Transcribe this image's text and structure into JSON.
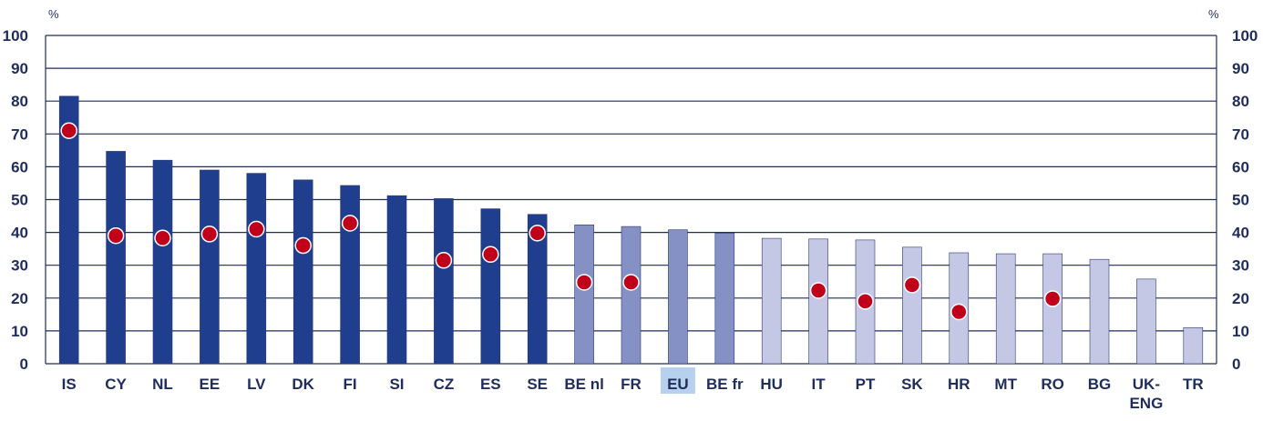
{
  "chart_data": {
    "type": "bar",
    "unit_left": "%",
    "unit_right": "%",
    "ylim": [
      0,
      100
    ],
    "yticks": [
      "0",
      "10",
      "20",
      "30",
      "40",
      "50",
      "60",
      "70",
      "80",
      "90",
      "100"
    ],
    "grid": true,
    "highlight_category": "EU",
    "categories": [
      [
        "IS"
      ],
      [
        "CY"
      ],
      [
        "NL"
      ],
      [
        "EE"
      ],
      [
        "LV"
      ],
      [
        "DK"
      ],
      [
        "FI"
      ],
      [
        "SI"
      ],
      [
        "CZ"
      ],
      [
        "ES"
      ],
      [
        "SE"
      ],
      [
        "BE nl"
      ],
      [
        "FR"
      ],
      [
        "EU"
      ],
      [
        "BE fr"
      ],
      [
        "HU"
      ],
      [
        "IT"
      ],
      [
        "PT"
      ],
      [
        "SK"
      ],
      [
        "HR"
      ],
      [
        "MT"
      ],
      [
        "RO"
      ],
      [
        "BG"
      ],
      [
        "UK-",
        "ENG"
      ],
      [
        "TR"
      ]
    ],
    "values": [
      81.5,
      64.7,
      62.0,
      59.0,
      58.0,
      56.0,
      54.3,
      51.2,
      50.3,
      47.2,
      45.5,
      42.3,
      41.8,
      40.8,
      39.8,
      38.2,
      38.0,
      37.7,
      35.5,
      33.8,
      33.5,
      33.5,
      31.8,
      25.8,
      11.0
    ],
    "groups": [
      "dark",
      "dark",
      "dark",
      "dark",
      "dark",
      "dark",
      "dark",
      "dark",
      "dark",
      "dark",
      "dark",
      "mid",
      "mid",
      "mid",
      "mid",
      "light",
      "light",
      "light",
      "light",
      "light",
      "light",
      "light",
      "light",
      "light",
      "light"
    ],
    "markers": [
      71.0,
      39.0,
      38.3,
      39.5,
      41.0,
      36.0,
      42.8,
      null,
      31.5,
      33.3,
      39.8,
      24.8,
      24.8,
      null,
      null,
      null,
      22.3,
      19.0,
      24.0,
      15.8,
      null,
      19.8,
      null,
      null,
      null
    ],
    "colors": {
      "dark": "#1f3f8e",
      "mid": "#8591c4",
      "light": "#c4c8e5",
      "marker": "#c0001a",
      "grid": "#1f2d5c",
      "highlight_bg": "#b7d0ee"
    }
  }
}
